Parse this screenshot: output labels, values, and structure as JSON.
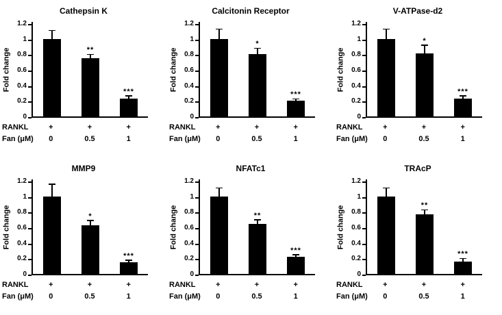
{
  "figure": {
    "ylabel": "Fold change",
    "bar_color": "#000000",
    "background_color": "#ffffff"
  },
  "chart_data": [
    {
      "type": "bar",
      "title": "Cathepsin K",
      "ylabel": "Fold change",
      "ylim": [
        0,
        1.2
      ],
      "yticks": [
        "0",
        "0.2",
        "0.4",
        "0.6",
        "0.8",
        "1",
        "1.2"
      ],
      "x_rows": [
        {
          "label": "RANKL",
          "cells": [
            "+",
            "+",
            "+"
          ]
        },
        {
          "label": "Fan (μM)",
          "cells": [
            "0",
            "0.5",
            "1"
          ]
        }
      ],
      "values": [
        1.0,
        0.75,
        0.23
      ],
      "errors": [
        0.1,
        0.04,
        0.03
      ],
      "significance": [
        "",
        "**",
        "***"
      ],
      "bar_color": "#000000"
    },
    {
      "type": "bar",
      "title": "Calcitonin Receptor",
      "ylabel": "Fold change",
      "ylim": [
        0,
        1.2
      ],
      "yticks": [
        "0",
        "0.2",
        "0.4",
        "0.6",
        "0.8",
        "1",
        "1.2"
      ],
      "x_rows": [
        {
          "label": "RANKL",
          "cells": [
            "+",
            "+",
            "+"
          ]
        },
        {
          "label": "Fan (μM)",
          "cells": [
            "0",
            "0.5",
            "1"
          ]
        }
      ],
      "values": [
        1.0,
        0.8,
        0.2
      ],
      "errors": [
        0.12,
        0.07,
        0.02
      ],
      "significance": [
        "",
        "*",
        "***"
      ],
      "bar_color": "#000000"
    },
    {
      "type": "bar",
      "title": "V-ATPase-d2",
      "ylabel": "Fold change",
      "ylim": [
        0,
        1.2
      ],
      "yticks": [
        "0",
        "0.2",
        "0.4",
        "0.6",
        "0.8",
        "1",
        "1.2"
      ],
      "x_rows": [
        {
          "label": "RANKL",
          "cells": [
            "+",
            "+",
            "+"
          ]
        },
        {
          "label": "Fan (μM)",
          "cells": [
            "0",
            "0.5",
            "1"
          ]
        }
      ],
      "values": [
        1.0,
        0.81,
        0.23
      ],
      "errors": [
        0.12,
        0.1,
        0.03
      ],
      "significance": [
        "",
        "*",
        "***"
      ],
      "bar_color": "#000000"
    },
    {
      "type": "bar",
      "title": "MMP9",
      "ylabel": "Fold change",
      "ylim": [
        0,
        1.2
      ],
      "yticks": [
        "0",
        "0.2",
        "0.4",
        "0.6",
        "0.8",
        "1",
        "1.2"
      ],
      "x_rows": [
        {
          "label": "RANKL",
          "cells": [
            "+",
            "+",
            "+"
          ]
        },
        {
          "label": "Fan (μM)",
          "cells": [
            "0",
            "0.5",
            "1"
          ]
        }
      ],
      "values": [
        1.0,
        0.63,
        0.15
      ],
      "errors": [
        0.15,
        0.05,
        0.02
      ],
      "significance": [
        "",
        "*",
        "***"
      ],
      "bar_color": "#000000"
    },
    {
      "type": "bar",
      "title": "NFATc1",
      "ylabel": "Fold change",
      "ylim": [
        0,
        1.2
      ],
      "yticks": [
        "0",
        "0.2",
        "0.4",
        "0.6",
        "0.8",
        "1",
        "1.2"
      ],
      "x_rows": [
        {
          "label": "RANKL",
          "cells": [
            "+",
            "+",
            "+"
          ]
        },
        {
          "label": "Fan (μM)",
          "cells": [
            "0",
            "0.5",
            "1"
          ]
        }
      ],
      "values": [
        1.0,
        0.64,
        0.22
      ],
      "errors": [
        0.1,
        0.05,
        0.02
      ],
      "significance": [
        "",
        "**",
        "***"
      ],
      "bar_color": "#000000"
    },
    {
      "type": "bar",
      "title": "TRAcP",
      "ylabel": "Fold change",
      "ylim": [
        0,
        1.2
      ],
      "yticks": [
        "0",
        "0.2",
        "0.4",
        "0.6",
        "0.8",
        "1",
        "1.2"
      ],
      "x_rows": [
        {
          "label": "RANKL",
          "cells": [
            "+",
            "+",
            "+"
          ]
        },
        {
          "label": "Fan (μM)",
          "cells": [
            "0",
            "0.5",
            "1"
          ]
        }
      ],
      "values": [
        1.0,
        0.77,
        0.16
      ],
      "errors": [
        0.1,
        0.05,
        0.03
      ],
      "significance": [
        "",
        "**",
        "***"
      ],
      "bar_color": "#000000"
    }
  ]
}
